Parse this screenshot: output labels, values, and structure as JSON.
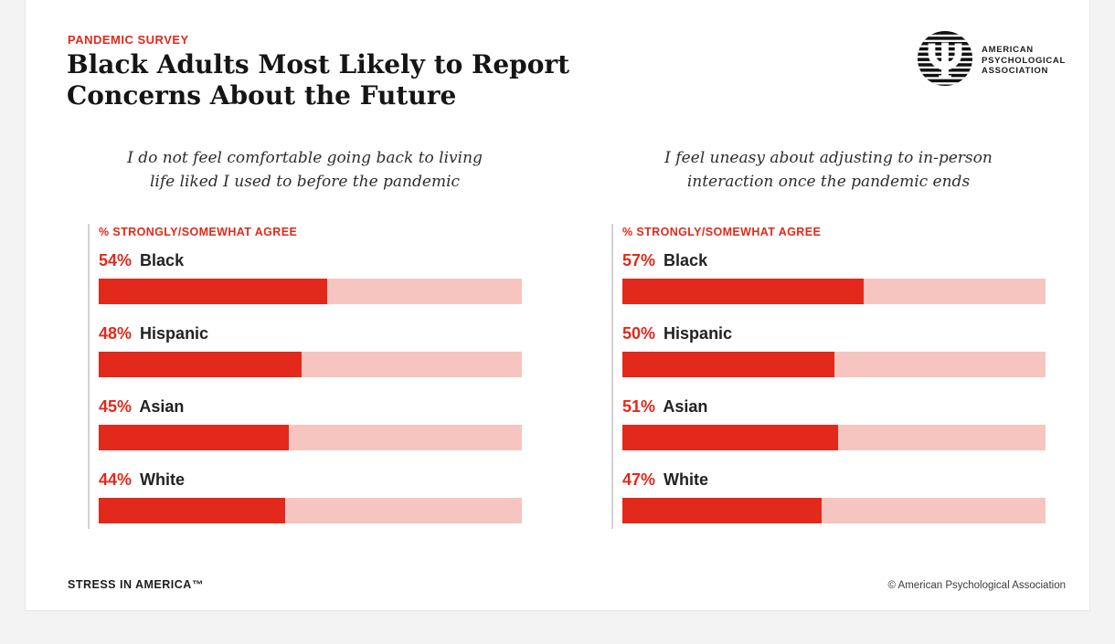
{
  "colors": {
    "accent": "#e2291b",
    "bar_track": "#f7c5c0"
  },
  "header": {
    "eyebrow": "PANDEMIC SURVEY",
    "title_lines": [
      "Black Adults Most Likely to Report",
      "Concerns About the Future"
    ],
    "logo_text_lines": [
      "AMERICAN",
      "PSYCHOLOGICAL",
      "ASSOCIATION"
    ]
  },
  "chart_data": [
    {
      "type": "bar",
      "orientation": "horizontal",
      "title": "I do not feel comfortable going back to living life liked I used to before the pandemic",
      "axis_label": "% STRONGLY/SOMEWHAT AGREE",
      "categories": [
        "Black",
        "Hispanic",
        "Asian",
        "White"
      ],
      "values": [
        54,
        48,
        45,
        44
      ],
      "value_suffix": "%",
      "xlim": [
        0,
        100
      ],
      "grid": false,
      "legend": false
    },
    {
      "type": "bar",
      "orientation": "horizontal",
      "title": "I feel uneasy about adjusting to in-person interaction once the pandemic ends",
      "axis_label": "% STRONGLY/SOMEWHAT AGREE",
      "categories": [
        "Black",
        "Hispanic",
        "Asian",
        "White"
      ],
      "values": [
        57,
        50,
        51,
        47
      ],
      "value_suffix": "%",
      "xlim": [
        0,
        100
      ],
      "grid": false,
      "legend": false
    }
  ],
  "footer": {
    "brand": "STRESS IN AMERICA™",
    "copyright": "© American Psychological Association"
  }
}
